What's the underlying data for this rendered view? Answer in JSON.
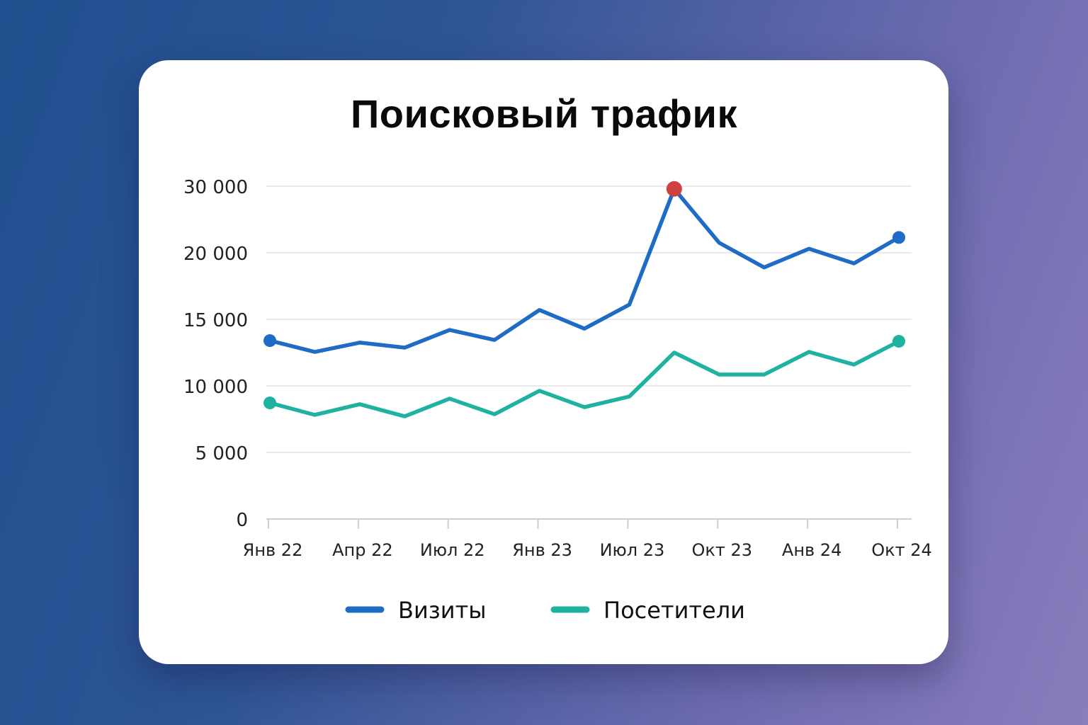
{
  "chart_data": {
    "type": "line",
    "title": "Поисковый трафик",
    "xlabel": "",
    "ylabel": "",
    "y_ticks": [
      0,
      5000,
      10000,
      15000,
      20000,
      30000
    ],
    "y_tick_labels": [
      "0",
      "5 000",
      "10 000",
      "15 000",
      "20 000",
      "30 000"
    ],
    "x_tick_labels": [
      "Янв 22",
      "Апр 22",
      "Июл 22",
      "Янв 23",
      "Июл 23",
      "Окт 23",
      "Анв 24",
      "Окт 24"
    ],
    "x_tick_indices": [
      0,
      2,
      4,
      6,
      8,
      10,
      12,
      14
    ],
    "grid": true,
    "legend_position": "bottom",
    "series": [
      {
        "name": "Визиты",
        "color": "#1f6cc6",
        "values": [
          13400,
          12550,
          13250,
          12870,
          14200,
          13450,
          15700,
          14300,
          16100,
          29600,
          21500,
          18900,
          20600,
          19200,
          22300
        ]
      },
      {
        "name": "Посетители",
        "color": "#1fb2a0",
        "values": [
          8720,
          7820,
          8620,
          7710,
          9040,
          7870,
          9630,
          8400,
          9200,
          12500,
          10850,
          10850,
          12550,
          11600,
          13350
        ]
      }
    ],
    "highlight": {
      "series": 0,
      "index": 9,
      "color": "#d0403f"
    }
  }
}
